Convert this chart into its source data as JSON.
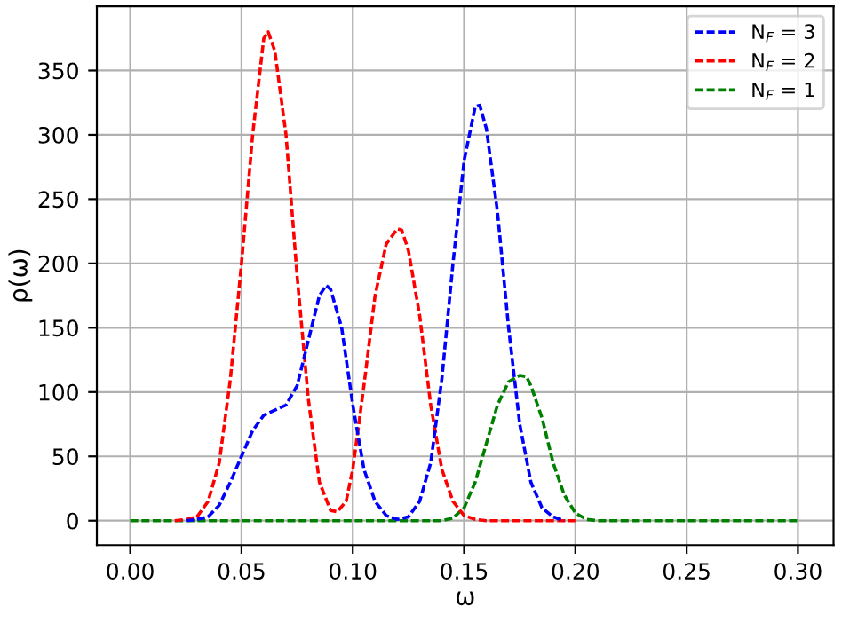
{
  "chart_data": {
    "type": "line",
    "xlabel": "ω",
    "ylabel": "ρ(ω)",
    "xlim": [
      -0.015,
      0.316
    ],
    "ylim": [
      -19,
      400
    ],
    "xticks": [
      {
        "value": 0.0,
        "label": "0.00"
      },
      {
        "value": 0.05,
        "label": "0.05"
      },
      {
        "value": 0.1,
        "label": "0.10"
      },
      {
        "value": 0.15,
        "label": "0.15"
      },
      {
        "value": 0.2,
        "label": "0.20"
      },
      {
        "value": 0.25,
        "label": "0.25"
      },
      {
        "value": 0.3,
        "label": "0.30"
      }
    ],
    "yticks": [
      0,
      50,
      100,
      150,
      200,
      250,
      300,
      350
    ],
    "grid": true,
    "legend": "top right",
    "line_style": "dashed",
    "marker": "none",
    "series": [
      {
        "name": "N$_{F}$ = 3",
        "color": "#0000ff",
        "x": [
          0.025,
          0.03,
          0.035,
          0.04,
          0.045,
          0.05,
          0.055,
          0.06,
          0.065,
          0.07,
          0.075,
          0.08,
          0.085,
          0.088,
          0.09,
          0.095,
          0.1,
          0.105,
          0.11,
          0.115,
          0.12,
          0.125,
          0.13,
          0.135,
          0.14,
          0.145,
          0.15,
          0.155,
          0.157,
          0.16,
          0.165,
          0.17,
          0.175,
          0.18,
          0.185,
          0.19,
          0.195
        ],
        "values": [
          0,
          1,
          3,
          12,
          30,
          50,
          70,
          82,
          86,
          90,
          105,
          140,
          175,
          183,
          180,
          150,
          90,
          40,
          15,
          4,
          1,
          3,
          15,
          45,
          110,
          200,
          280,
          322,
          323,
          305,
          240,
          150,
          75,
          30,
          10,
          3,
          0
        ]
      },
      {
        "name": "N$_{F}$ = 2",
        "color": "#ff0000",
        "x": [
          0.02,
          0.025,
          0.03,
          0.035,
          0.04,
          0.045,
          0.05,
          0.055,
          0.06,
          0.062,
          0.065,
          0.07,
          0.075,
          0.08,
          0.085,
          0.09,
          0.093,
          0.097,
          0.1,
          0.105,
          0.11,
          0.115,
          0.12,
          0.122,
          0.125,
          0.13,
          0.135,
          0.14,
          0.145,
          0.15,
          0.155,
          0.16,
          0.2
        ],
        "values": [
          0,
          1,
          3,
          15,
          45,
          110,
          200,
          300,
          375,
          380,
          365,
          300,
          190,
          95,
          30,
          8,
          7,
          15,
          40,
          105,
          175,
          215,
          227,
          226,
          210,
          160,
          90,
          40,
          15,
          4,
          1,
          0,
          0
        ]
      },
      {
        "name": "N$_{F}$ = 1",
        "color": "#008000",
        "x": [
          0,
          0.14,
          0.145,
          0.15,
          0.155,
          0.16,
          0.165,
          0.17,
          0.175,
          0.178,
          0.18,
          0.185,
          0.19,
          0.195,
          0.2,
          0.205,
          0.21,
          0.3
        ],
        "values": [
          0,
          0,
          2,
          10,
          30,
          60,
          90,
          108,
          113,
          112,
          105,
          80,
          45,
          20,
          6,
          1,
          0,
          0
        ]
      }
    ]
  }
}
